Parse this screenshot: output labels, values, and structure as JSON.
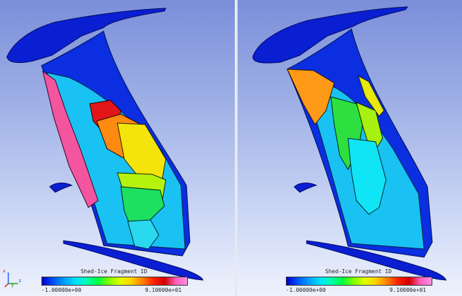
{
  "viewports": [
    {
      "id": "left",
      "legend": {
        "title": "Shed-Ice Fragment ID",
        "min_label": "-1.00000e+00",
        "max_label": "9.10000e+01"
      }
    },
    {
      "id": "right",
      "legend": {
        "title": "Shed-Ice Fragment ID",
        "min_label": "-1.00000e+00",
        "max_label": "9.10000e+01"
      }
    }
  ],
  "colormap": [
    "#0000c8",
    "#0050ff",
    "#00a0ff",
    "#00e0ff",
    "#00ffb0",
    "#00ff40",
    "#80ff00",
    "#e0ff00",
    "#ffd000",
    "#ff8000",
    "#ff2000",
    "#d00000",
    "#ff60c0",
    "#ff90e0"
  ],
  "axis_triad": {
    "x": "x",
    "y": "y",
    "z": "z"
  }
}
